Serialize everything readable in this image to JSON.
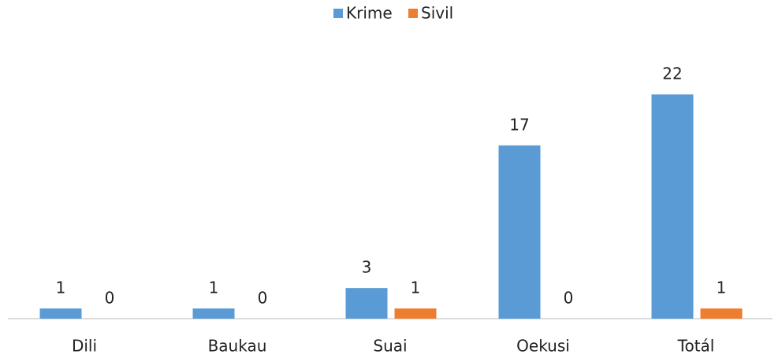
{
  "chart_data": {
    "type": "bar",
    "categories": [
      "Dili",
      "Baukau",
      "Suai",
      "Oekusi",
      "Totál"
    ],
    "series": [
      {
        "name": "Krime",
        "color": "#5b9bd5",
        "values": [
          1,
          1,
          3,
          17,
          22
        ]
      },
      {
        "name": "Sivil",
        "color": "#ed7d31",
        "values": [
          0,
          0,
          1,
          0,
          1
        ]
      }
    ],
    "legend": "top"
  }
}
